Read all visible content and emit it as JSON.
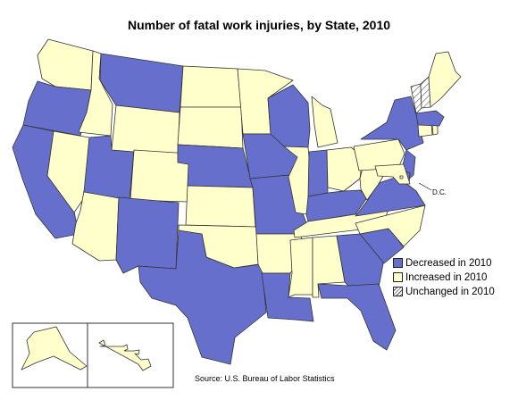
{
  "title": "Number of fatal work injuries, by State, 2010",
  "source": "Source:  U.S. Bureau of Labor Statistics",
  "dc_label": "D.C.",
  "colors": {
    "decreased": "#6670CC",
    "increased": "#FFFFCC",
    "unchanged": "hatched",
    "border": "#333333"
  },
  "legend": [
    {
      "key": "decreased",
      "label": "Decreased in 2010"
    },
    {
      "key": "increased",
      "label": "Increased in 2010"
    },
    {
      "key": "unchanged",
      "label": "Unchanged in 2010"
    }
  ],
  "states": {
    "WA": "increased",
    "OR": "decreased",
    "CA": "decreased",
    "ID": "increased",
    "NV": "increased",
    "AZ": "increased",
    "UT": "decreased",
    "MT": "decreased",
    "WY": "increased",
    "CO": "increased",
    "NM": "decreased",
    "ND": "increased",
    "SD": "increased",
    "NE": "decreased",
    "KS": "increased",
    "OK": "increased",
    "TX": "decreased",
    "MN": "increased",
    "IA": "decreased",
    "MO": "decreased",
    "AR": "increased",
    "LA": "decreased",
    "WI": "decreased",
    "IL": "increased",
    "MI": "increased",
    "IN": "decreased",
    "OH": "increased",
    "KY": "decreased",
    "TN": "increased",
    "MS": "increased",
    "AL": "increased",
    "GA": "decreased",
    "FL": "decreased",
    "SC": "decreased",
    "NC": "increased",
    "VA": "decreased",
    "WV": "increased",
    "PA": "increased",
    "NY": "decreased",
    "NJ": "decreased",
    "DE": "decreased",
    "MD": "increased",
    "DC": "increased",
    "CT": "increased",
    "RI": "increased",
    "MA": "decreased",
    "VT": "unchanged",
    "NH": "unchanged",
    "ME": "increased",
    "AK": "increased",
    "HI": "increased"
  }
}
